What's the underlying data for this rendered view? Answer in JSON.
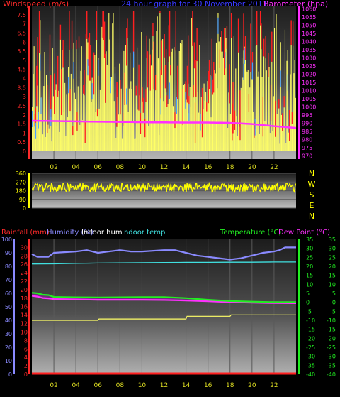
{
  "top": {
    "left_label": "Windspeed (m/s)",
    "title": "24 hour graph for  30 November 2011",
    "right_label": "Barometer (hpa)"
  },
  "bottom": {
    "labels": [
      {
        "text": "Rainfall (mm)",
        "color": "#ff2a2a"
      },
      {
        "text": "Humidity (%)",
        "color": "#8a8aff"
      },
      {
        "text": "Indoor hum",
        "color": "#ffffff"
      },
      {
        "text": "Indoor temp",
        "color": "#40e0e0"
      },
      {
        "text": "Temperature (°C)",
        "color": "#22ee22"
      },
      {
        "text": "Dew Point (°C)",
        "color": "#ff30ff"
      }
    ]
  },
  "colors": {
    "wind_avg": "#ffff66",
    "wind_gust": "#ff2020",
    "wind_alt": "#4aa0ff",
    "pressure": "#ff30ff",
    "direction": "#ffff00",
    "temperature": "#22ee22",
    "dewpoint": "#ff30ff",
    "humidity": "#8a8aff",
    "indoor_hum": "#ffff66",
    "indoor_temp": "#40e0e0",
    "rain": "#ff2020",
    "hour_labels": "#dddd22"
  },
  "chart_data": [
    {
      "type": "line",
      "title": "24 hour graph for  30 November 2011",
      "ylabel": "Windspeed (m/s)",
      "ylabel_right": "Barometer (hpa)",
      "x_ticks": [
        "02",
        "04",
        "06",
        "08",
        "10",
        "12",
        "14",
        "16",
        "18",
        "20",
        "22"
      ],
      "ylim": [
        0,
        8
      ],
      "y_ticks": [
        "0",
        "0.5",
        "1",
        "1.5",
        "2",
        "2.5",
        "3",
        "3.5",
        "4",
        "4.5",
        "5",
        "5.5",
        "6",
        "6.5",
        "7",
        "7.5"
      ],
      "ylim_right": [
        968,
        1062
      ],
      "y_ticks_right": [
        "970",
        "975",
        "980",
        "985",
        "990",
        "995",
        "1000",
        "1005",
        "1010",
        "1015",
        "1020",
        "1025",
        "1030",
        "1035",
        "1040",
        "1045",
        "1050",
        "1055",
        "1060"
      ],
      "series": [
        {
          "name": "Windspeed (m/s)",
          "hours": [
            0,
            1,
            2,
            3,
            4,
            5,
            6,
            7,
            8,
            9,
            10,
            11,
            12,
            13,
            14,
            15,
            16,
            17,
            18,
            19,
            20,
            21,
            22,
            23,
            24
          ],
          "values": [
            3.4,
            3.6,
            3.3,
            3.2,
            3.5,
            3.3,
            3.4,
            3.6,
            3.3,
            3.4,
            3.7,
            3.5,
            3.8,
            3.4,
            3.3,
            3.2,
            3.3,
            3.4,
            3.3,
            3.5,
            3.0,
            3.1,
            3.2,
            3.3,
            3.3
          ]
        },
        {
          "name": "Barometer (hpa)",
          "hours": [
            0,
            2,
            4,
            6,
            8,
            10,
            12,
            14,
            16,
            18,
            20,
            22,
            24
          ],
          "values": [
            991.5,
            991.3,
            991.1,
            990.9,
            990.8,
            990.6,
            990.5,
            990.4,
            990.4,
            990.2,
            989.5,
            988.2,
            987.1
          ]
        }
      ]
    },
    {
      "type": "scatter",
      "y_ticks": [
        "360",
        "270",
        "180",
        "90",
        "0"
      ],
      "ylim": [
        0,
        360
      ],
      "direction_labels": [
        "N",
        "W",
        "S",
        "E",
        "N"
      ],
      "series": [
        {
          "name": "Wind direction",
          "hours": [
            0,
            2,
            4,
            6,
            8,
            10,
            12,
            14,
            16,
            18,
            20,
            22,
            24
          ],
          "values": [
            215,
            212,
            220,
            210,
            218,
            214,
            212,
            216,
            210,
            214,
            212,
            218,
            215
          ]
        }
      ]
    },
    {
      "type": "line",
      "x_ticks": [
        "02",
        "04",
        "06",
        "08",
        "10",
        "12",
        "14",
        "16",
        "18",
        "20",
        "22"
      ],
      "y_ticks_left": [
        "0",
        "10",
        "20",
        "30",
        "40",
        "50",
        "60",
        "70",
        "80",
        "90",
        "100"
      ],
      "y_ticks_inner": [
        "0",
        "2",
        "4",
        "6",
        "8",
        "10",
        "12",
        "14",
        "16",
        "18",
        "20",
        "22",
        "24",
        "26",
        "28",
        "30"
      ],
      "y_ticks_right": [
        "-40",
        "-35",
        "-30",
        "-25",
        "-20",
        "-15",
        "-10",
        "-5",
        "0",
        "5",
        "10",
        "15",
        "20",
        "25",
        "30",
        "35"
      ],
      "ylim_humidity": [
        0,
        100
      ],
      "ylim_temperature": [
        -40,
        35
      ],
      "series": [
        {
          "name": "Humidity (%)",
          "hours": [
            0,
            0.5,
            1,
            1.5,
            2,
            4,
            5,
            6,
            8,
            9,
            10,
            12,
            13,
            14,
            15,
            16,
            17,
            18,
            19,
            20,
            21,
            22,
            22.5,
            23,
            24
          ],
          "values": [
            89,
            87,
            87,
            87,
            90,
            91,
            92,
            90,
            92,
            91,
            91,
            92,
            92,
            90,
            88,
            87,
            86,
            85,
            86,
            88,
            90,
            91,
            92,
            94,
            94
          ]
        },
        {
          "name": "Indoor hum",
          "hours": [
            0,
            6,
            6.1,
            14,
            14.1,
            18,
            18.1,
            20,
            24
          ],
          "values": [
            40,
            40,
            41,
            41,
            43,
            43,
            44,
            44,
            44
          ]
        },
        {
          "name": "Indoor temp",
          "hours": [
            0,
            2,
            4,
            6,
            8,
            10,
            12,
            14,
            16,
            18,
            20,
            22,
            24
          ],
          "values": [
            21.3,
            21.4,
            21.6,
            21.8,
            21.9,
            22.0,
            22.1,
            22.2,
            22.2,
            22.3,
            22.3,
            22.4,
            22.4
          ]
        },
        {
          "name": "Temperature (°C)",
          "hours": [
            0,
            0.5,
            1,
            1.5,
            2,
            4,
            6,
            8,
            10,
            12,
            14,
            16,
            18,
            20,
            22,
            24
          ],
          "values": [
            5.3,
            5.0,
            4.2,
            4.0,
            3.0,
            2.8,
            2.7,
            2.8,
            2.9,
            2.9,
            2.3,
            1.4,
            0.7,
            0.4,
            0.1,
            0.1
          ]
        },
        {
          "name": "Dew Point (°C)",
          "hours": [
            0,
            0.5,
            1,
            1.5,
            2,
            4,
            6,
            8,
            10,
            12,
            14,
            16,
            18,
            20,
            22,
            24
          ],
          "values": [
            3.6,
            3.2,
            2.4,
            2.2,
            1.8,
            1.6,
            1.4,
            1.4,
            1.4,
            1.3,
            1.0,
            0.6,
            0.1,
            -0.2,
            -0.4,
            -0.5
          ]
        },
        {
          "name": "Rainfall (mm)",
          "hours": [
            0,
            24
          ],
          "values": [
            0,
            0
          ]
        }
      ]
    }
  ]
}
